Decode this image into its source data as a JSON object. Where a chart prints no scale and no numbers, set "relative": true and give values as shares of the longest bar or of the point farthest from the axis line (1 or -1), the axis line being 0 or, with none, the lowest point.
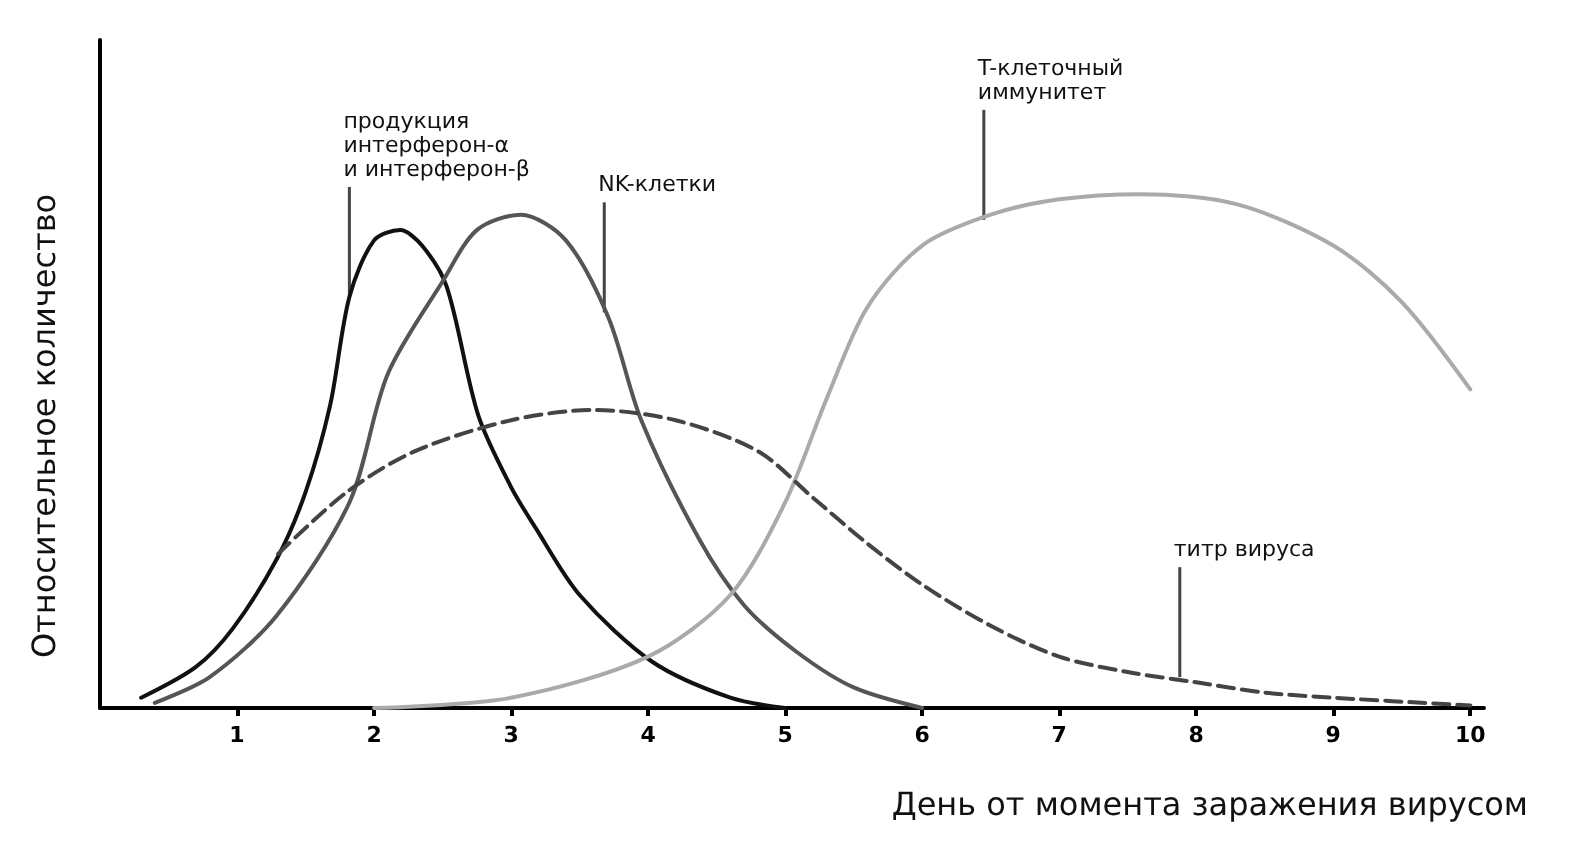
{
  "chart_data": {
    "type": "line",
    "relative": true,
    "xlabel": "День от момента заражения вирусом",
    "ylabel": "Относительное количество",
    "xlim": [
      0,
      10.1
    ],
    "xticks": [
      1,
      2,
      3,
      4,
      5,
      6,
      7,
      8,
      9,
      10
    ],
    "grid": false,
    "marker": "none",
    "series": [
      {
        "color": "#111111",
        "line_style": "solid",
        "x": [
          0.3,
          0.7,
          0.97,
          1.29,
          1.5,
          1.68,
          1.82,
          2.0,
          2.19,
          2.35,
          2.53,
          2.76,
          3.0,
          3.18,
          3.5,
          4.03,
          4.6,
          5.0
        ],
        "values": [
          0.02,
          0.08,
          0.155,
          0.29,
          0.42,
          0.59,
          0.8,
          0.91,
          0.93,
          0.9,
          0.82,
          0.57,
          0.43,
          0.35,
          0.22,
          0.09,
          0.02,
          0
        ]
      },
      {
        "color": "#555555",
        "line_style": "solid",
        "x": [
          0.4,
          0.8,
          1.29,
          1.82,
          2.1,
          2.5,
          2.75,
          3.07,
          3.4,
          3.71,
          3.95,
          4.37,
          4.7,
          5.08,
          5.5,
          6.0
        ],
        "values": [
          0.01,
          0.06,
          0.18,
          0.4,
          0.65,
          0.83,
          0.93,
          0.96,
          0.91,
          0.76,
          0.56,
          0.33,
          0.2,
          0.11,
          0.04,
          0
        ]
      },
      {
        "color": "#aaaaaa",
        "line_style": "solid",
        "x": [
          2,
          3,
          4,
          4.6,
          5.0,
          5.3,
          5.6,
          6.0,
          6.5,
          7.0,
          7.6,
          8.3,
          9.0,
          9.5,
          10.0
        ],
        "values": [
          0,
          0.02,
          0.1,
          0.22,
          0.4,
          0.6,
          0.78,
          0.9,
          0.96,
          0.99,
          1,
          0.98,
          0.9,
          0.79,
          0.62
        ]
      },
      {
        "color": "#444444",
        "line_style": "dashed",
        "x": [
          1.3,
          1.8,
          2.3,
          3.0,
          3.6,
          4.2,
          4.8,
          5.2,
          5.6,
          6.0,
          6.5,
          7.0,
          7.5,
          8.0,
          8.5,
          9.0,
          10.0
        ],
        "values": [
          0.3,
          0.42,
          0.5,
          0.56,
          0.58,
          0.56,
          0.5,
          0.41,
          0.32,
          0.24,
          0.16,
          0.1,
          0.07,
          0.05,
          0.03,
          0.02,
          0.005
        ]
      }
    ],
    "annotations": [
      {
        "text": "продукция\nинтерферон-α\nи интерферон-β",
        "x": 1.82,
        "y": 0.8
      },
      {
        "text": "NK-клетки",
        "x": 3.68,
        "y": 0.77
      },
      {
        "text": "T-клеточный\nиммунитет",
        "x": 6.45,
        "y": 0.95
      },
      {
        "text": "титр вируса",
        "x": 7.88,
        "y": 0.06
      }
    ]
  }
}
